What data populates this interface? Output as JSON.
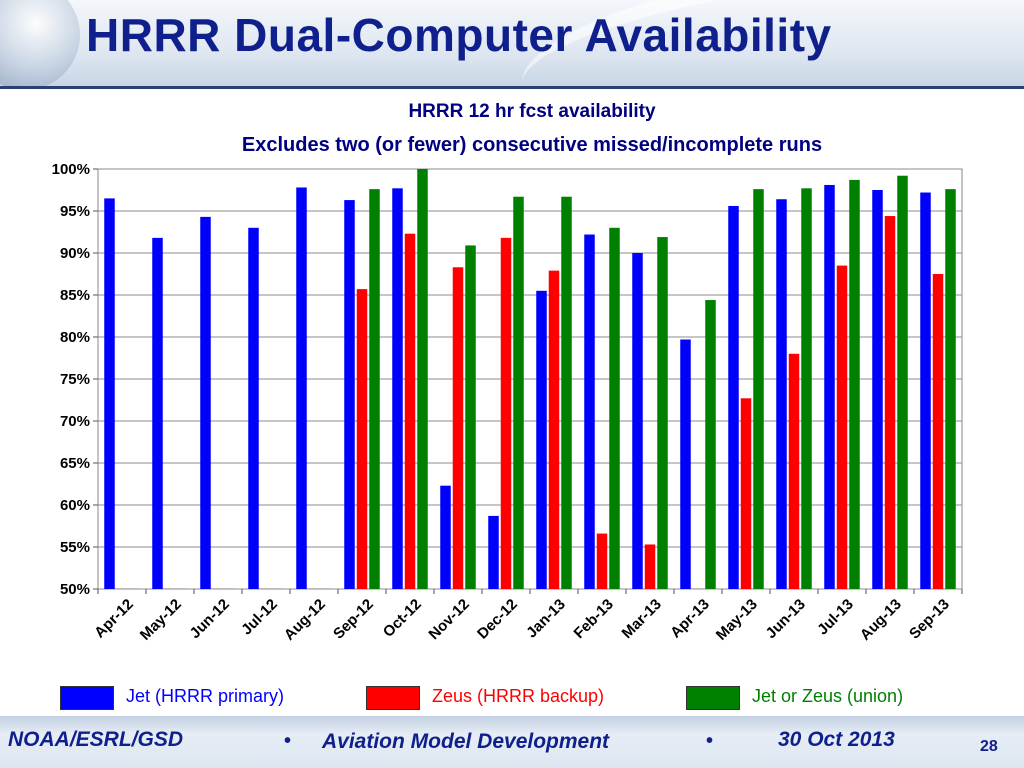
{
  "slide": {
    "title": "HRRR Dual-Computer Availability",
    "footer": {
      "org": "NOAA/ESRL/GSD",
      "bullet": "•",
      "center": "Aviation Model Development",
      "date": "30 Oct 2013",
      "page": "28"
    }
  },
  "chart_data": {
    "type": "bar",
    "title": "HRRR 12 hr fcst availability",
    "subtitle": "Excludes two (or fewer) consecutive missed/incomplete runs",
    "categories": [
      "Apr-12",
      "May-12",
      "Jun-12",
      "Jul-12",
      "Aug-12",
      "Sep-12",
      "Oct-12",
      "Nov-12",
      "Dec-12",
      "Jan-13",
      "Feb-13",
      "Mar-13",
      "Apr-13",
      "May-13",
      "Jun-13",
      "Jul-13",
      "Aug-13",
      "Sep-13"
    ],
    "series": [
      {
        "name": "Jet (HRRR primary)",
        "color": "#0000ff",
        "values": [
          96.5,
          91.8,
          94.3,
          93.0,
          97.8,
          96.3,
          97.7,
          62.3,
          58.7,
          85.5,
          92.2,
          90.0,
          79.7,
          95.6,
          96.4,
          98.1,
          97.5,
          97.2
        ]
      },
      {
        "name": "Zeus (HRRR backup)",
        "color": "#ff0000",
        "values": [
          null,
          null,
          null,
          null,
          null,
          85.7,
          92.3,
          88.3,
          91.8,
          87.9,
          56.6,
          55.3,
          null,
          72.7,
          78.0,
          88.5,
          94.4,
          87.5
        ]
      },
      {
        "name": "Jet or Zeus (union)",
        "color": "#008000",
        "values": [
          null,
          null,
          null,
          null,
          null,
          97.6,
          100.0,
          90.9,
          96.7,
          96.7,
          93.0,
          91.9,
          84.4,
          97.6,
          97.7,
          98.7,
          99.2,
          97.6
        ]
      }
    ],
    "yticks": [
      "50%",
      "55%",
      "60%",
      "65%",
      "70%",
      "75%",
      "80%",
      "85%",
      "90%",
      "95%",
      "100%"
    ],
    "ylim": [
      50,
      100
    ],
    "grid": true,
    "legend_position": "bottom"
  }
}
